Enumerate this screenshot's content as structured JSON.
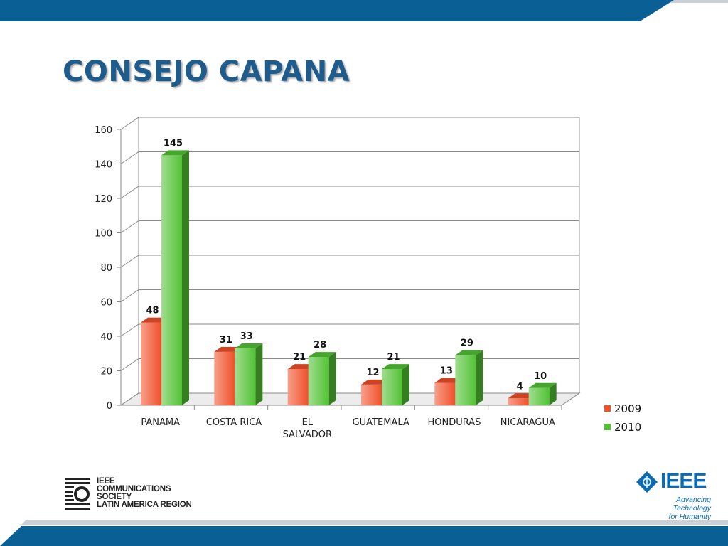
{
  "slide": {
    "title": "CONSEJO CAPANA",
    "colors": {
      "bar_top": "#0a5f95",
      "bar_stripe": "#c9d0d6",
      "title": "#1d5c8c"
    }
  },
  "chart_data": {
    "type": "bar",
    "style": "3d-clustered-column",
    "categories": [
      "PANAMA",
      "COSTA RICA",
      "EL SALVADOR",
      "GUATEMALA",
      "HONDURAS",
      "NICARAGUA"
    ],
    "category_lines": [
      [
        "PANAMA"
      ],
      [
        "COSTA RICA"
      ],
      [
        "EL",
        "SALVADOR"
      ],
      [
        "GUATEMALA"
      ],
      [
        "HONDURAS"
      ],
      [
        "NICARAGUA"
      ]
    ],
    "series": [
      {
        "name": "2009",
        "values": [
          48,
          31,
          21,
          12,
          13,
          4
        ],
        "color": "#f0502a"
      },
      {
        "name": "2010",
        "values": [
          145,
          33,
          28,
          21,
          29,
          10
        ],
        "color": "#52c234"
      }
    ],
    "ylim": [
      0,
      160
    ],
    "yticks": [
      0,
      20,
      40,
      60,
      80,
      100,
      120,
      140,
      160
    ],
    "grid": true,
    "legend_position": "right",
    "data_labels": true,
    "title": "",
    "xlabel": "",
    "ylabel": ""
  },
  "logos": {
    "comsoc_lines": [
      "IEEE",
      "COMMUNICATIONS",
      "SOCIETY",
      "LATIN AMERICA REGION"
    ],
    "ieee_word": "IEEE",
    "ieee_tagline_1": "Advancing Technology",
    "ieee_tagline_2": "for Humanity"
  }
}
